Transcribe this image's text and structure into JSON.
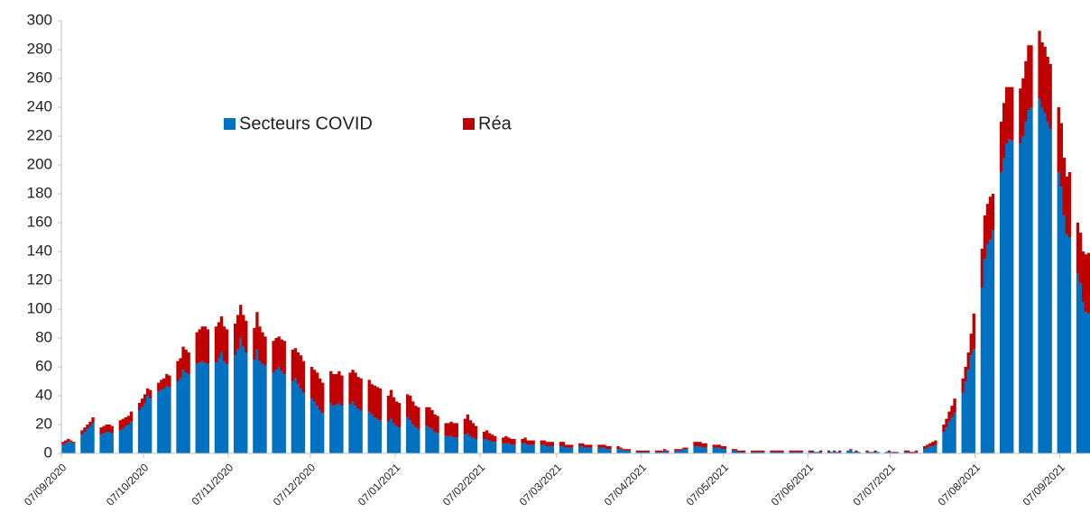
{
  "chart_data": {
    "type": "bar",
    "stacked": true,
    "categories": [
      "07/09/2020",
      null,
      null,
      null,
      null,
      null,
      null,
      null,
      null,
      null,
      null,
      null,
      null,
      null,
      null,
      null,
      null,
      null,
      null,
      null,
      null,
      null,
      null,
      null,
      null,
      null,
      null,
      null,
      null,
      null,
      "07/10/2020",
      null,
      null,
      null,
      null,
      null,
      null,
      null,
      null,
      null,
      null,
      null,
      null,
      null,
      null,
      null,
      null,
      null,
      null,
      null,
      null,
      null,
      null,
      null,
      null,
      null,
      null,
      null,
      null,
      null,
      null,
      "07/11/2020",
      null,
      null,
      null,
      null,
      null,
      null,
      null,
      null,
      null,
      null,
      null,
      null,
      null,
      null,
      null,
      null,
      null,
      null,
      null,
      null,
      null,
      null,
      null,
      null,
      null,
      null,
      null,
      null,
      null,
      "07/12/2020",
      null,
      null,
      null,
      null,
      null,
      null,
      null,
      null,
      null,
      null,
      null,
      null,
      null,
      null,
      null,
      null,
      null,
      null,
      null,
      null,
      null,
      null,
      null,
      null,
      null,
      null,
      null,
      null,
      null,
      null,
      "07/01/2021",
      null,
      null,
      null,
      null,
      null,
      null,
      null,
      null,
      null,
      null,
      null,
      null,
      null,
      null,
      null,
      null,
      null,
      null,
      null,
      null,
      null,
      null,
      null,
      null,
      null,
      null,
      null,
      null,
      null,
      null,
      "07/02/2021",
      null,
      null,
      null,
      null,
      null,
      null,
      null,
      null,
      null,
      null,
      null,
      null,
      null,
      null,
      null,
      null,
      null,
      null,
      null,
      null,
      null,
      null,
      null,
      null,
      null,
      null,
      null,
      "07/03/2021",
      null,
      null,
      null,
      null,
      null,
      null,
      null,
      null,
      null,
      null,
      null,
      null,
      null,
      null,
      null,
      null,
      null,
      null,
      null,
      null,
      null,
      null,
      null,
      null,
      null,
      null,
      null,
      null,
      null,
      null,
      "07/04/2021",
      null,
      null,
      null,
      null,
      null,
      null,
      null,
      null,
      null,
      null,
      null,
      null,
      null,
      null,
      null,
      null,
      null,
      null,
      null,
      null,
      null,
      null,
      null,
      null,
      null,
      null,
      null,
      null,
      null,
      "07/05/2021",
      null,
      null,
      null,
      null,
      null,
      null,
      null,
      null,
      null,
      null,
      null,
      null,
      null,
      null,
      null,
      null,
      null,
      null,
      null,
      null,
      null,
      null,
      null,
      null,
      null,
      null,
      null,
      null,
      null,
      null,
      "07/06/2021",
      null,
      null,
      null,
      null,
      null,
      null,
      null,
      null,
      null,
      null,
      null,
      null,
      null,
      null,
      null,
      null,
      null,
      null,
      null,
      null,
      null,
      null,
      null,
      null,
      null,
      null,
      null,
      null,
      null,
      "07/07/2021",
      null,
      null,
      null,
      null,
      null,
      null,
      null,
      null,
      null,
      null,
      null,
      null,
      null,
      null,
      null,
      null,
      null,
      null,
      null,
      null,
      null,
      null,
      null,
      null,
      null,
      null,
      null,
      null,
      null,
      null,
      "07/08/2021",
      null,
      null,
      null,
      null,
      null,
      null,
      null,
      null,
      null,
      null,
      null,
      null,
      null,
      null,
      null,
      null,
      null,
      null,
      null,
      null,
      null,
      null,
      null,
      null,
      null,
      null,
      null,
      null,
      null,
      null,
      "07/09/2021",
      null,
      null,
      null,
      null,
      null,
      null,
      null,
      null,
      null,
      null
    ],
    "series": [
      {
        "name": "Secteurs COVID",
        "color": "#0070c0",
        "values": [
          6,
          7,
          8,
          8,
          7,
          null,
          null,
          13,
          15,
          17,
          19,
          21,
          null,
          null,
          13,
          14,
          15,
          15,
          14,
          null,
          null,
          16,
          17,
          19,
          20,
          22,
          null,
          null,
          30,
          32,
          35,
          40,
          38,
          null,
          null,
          43,
          44,
          45,
          47,
          46,
          null,
          null,
          50,
          52,
          58,
          56,
          55,
          null,
          null,
          62,
          63,
          64,
          63,
          62,
          null,
          null,
          63,
          66,
          70,
          64,
          62,
          null,
          null,
          68,
          72,
          80,
          74,
          70,
          null,
          null,
          65,
          72,
          64,
          62,
          61,
          null,
          null,
          56,
          58,
          60,
          57,
          55,
          null,
          null,
          50,
          52,
          48,
          45,
          42,
          null,
          null,
          38,
          36,
          33,
          30,
          28,
          null,
          null,
          35,
          33,
          34,
          35,
          33,
          null,
          null,
          34,
          36,
          33,
          31,
          30,
          null,
          null,
          29,
          27,
          25,
          24,
          23,
          null,
          null,
          22,
          24,
          21,
          19,
          18,
          null,
          null,
          25,
          23,
          20,
          18,
          17,
          null,
          null,
          19,
          18,
          17,
          15,
          14,
          null,
          null,
          12,
          12,
          12,
          11,
          11,
          null,
          null,
          13,
          14,
          12,
          11,
          10,
          null,
          null,
          10,
          10,
          9,
          8,
          8,
          null,
          null,
          7,
          7,
          7,
          6,
          6,
          null,
          null,
          7,
          7,
          6,
          6,
          6,
          null,
          null,
          6,
          6,
          5,
          5,
          5,
          null,
          null,
          5,
          5,
          4,
          4,
          4,
          null,
          null,
          5,
          5,
          4,
          4,
          4,
          null,
          null,
          4,
          4,
          4,
          3,
          3,
          null,
          null,
          3,
          3,
          2,
          2,
          2,
          null,
          null,
          1,
          1,
          1,
          1,
          1,
          null,
          null,
          1,
          1,
          1,
          2,
          1,
          null,
          null,
          2,
          2,
          2,
          3,
          3,
          null,
          null,
          5,
          5,
          5,
          4,
          4,
          null,
          null,
          4,
          4,
          4,
          3,
          3,
          null,
          null,
          2,
          2,
          1,
          1,
          1,
          null,
          null,
          1,
          1,
          1,
          1,
          1,
          null,
          null,
          1,
          1,
          1,
          1,
          1,
          null,
          null,
          1,
          1,
          1,
          1,
          1,
          null,
          null,
          1,
          1,
          1,
          1,
          1,
          null,
          null,
          1,
          1,
          1,
          1,
          1,
          null,
          null,
          2,
          2,
          1,
          1,
          1,
          null,
          null,
          1,
          1,
          1,
          1,
          1,
          null,
          null,
          1,
          1,
          1,
          0,
          1,
          null,
          null,
          1,
          1,
          0,
          0,
          1,
          null,
          null,
          3,
          4,
          5,
          5,
          6,
          null,
          null,
          15,
          18,
          22,
          25,
          28,
          null,
          null,
          42,
          50,
          58,
          68,
          72,
          null,
          null,
          115,
          135,
          145,
          148,
          155,
          null,
          null,
          195,
          205,
          215,
          218,
          217,
          null,
          null,
          215,
          220,
          230,
          238,
          240,
          null,
          null,
          246,
          240,
          236,
          230,
          225,
          null,
          null,
          195,
          185,
          165,
          152,
          150,
          null,
          null,
          125,
          118,
          105,
          98,
          97
        ]
      },
      {
        "name": "Réa",
        "color": "#c00000",
        "values": [
          2,
          2,
          2,
          1,
          1,
          null,
          null,
          3,
          3,
          3,
          3,
          4,
          null,
          null,
          5,
          5,
          5,
          5,
          5,
          null,
          null,
          7,
          7,
          6,
          6,
          7,
          null,
          null,
          5,
          6,
          6,
          5,
          6,
          null,
          null,
          6,
          7,
          7,
          8,
          8,
          null,
          null,
          14,
          14,
          16,
          16,
          15,
          null,
          null,
          22,
          23,
          24,
          25,
          24,
          null,
          null,
          25,
          25,
          25,
          24,
          24,
          null,
          null,
          22,
          24,
          23,
          22,
          22,
          null,
          null,
          22,
          26,
          24,
          22,
          20,
          null,
          null,
          22,
          22,
          21,
          22,
          23,
          null,
          null,
          22,
          21,
          22,
          23,
          22,
          null,
          null,
          22,
          22,
          23,
          22,
          21,
          null,
          null,
          22,
          22,
          21,
          22,
          21,
          null,
          null,
          22,
          22,
          23,
          22,
          22,
          null,
          null,
          22,
          21,
          22,
          22,
          22,
          null,
          null,
          18,
          20,
          18,
          17,
          17,
          null,
          null,
          16,
          17,
          16,
          15,
          15,
          null,
          null,
          13,
          14,
          13,
          12,
          12,
          null,
          null,
          9,
          9,
          10,
          10,
          10,
          null,
          null,
          11,
          13,
          11,
          10,
          9,
          null,
          null,
          5,
          6,
          5,
          5,
          4,
          null,
          null,
          4,
          5,
          4,
          4,
          4,
          null,
          null,
          3,
          4,
          3,
          3,
          3,
          null,
          null,
          3,
          3,
          3,
          3,
          3,
          null,
          null,
          3,
          3,
          2,
          2,
          2,
          null,
          null,
          2,
          2,
          2,
          2,
          2,
          null,
          null,
          2,
          2,
          2,
          2,
          2,
          null,
          null,
          2,
          1,
          1,
          1,
          1,
          null,
          null,
          1,
          1,
          1,
          1,
          1,
          null,
          null,
          1,
          1,
          1,
          1,
          1,
          null,
          null,
          1,
          1,
          1,
          1,
          1,
          null,
          null,
          3,
          3,
          3,
          3,
          3,
          null,
          null,
          2,
          2,
          2,
          2,
          2,
          null,
          null,
          1,
          1,
          1,
          1,
          1,
          null,
          null,
          1,
          1,
          1,
          1,
          1,
          null,
          null,
          1,
          1,
          1,
          1,
          1,
          null,
          null,
          1,
          1,
          1,
          1,
          1,
          null,
          null,
          1,
          1,
          0,
          0,
          1,
          null,
          null,
          1,
          0,
          1,
          0,
          1,
          null,
          null,
          0,
          1,
          0,
          1,
          0,
          null,
          null,
          1,
          0,
          0,
          1,
          0,
          null,
          null,
          0,
          1,
          0,
          1,
          0,
          null,
          null,
          1,
          1,
          1,
          1,
          1,
          null,
          null,
          2,
          2,
          2,
          3,
          3,
          null,
          null,
          5,
          6,
          7,
          8,
          10,
          null,
          null,
          10,
          10,
          12,
          15,
          25,
          null,
          null,
          27,
          30,
          28,
          30,
          25,
          null,
          null,
          35,
          38,
          39,
          36,
          37,
          null,
          null,
          38,
          40,
          42,
          45,
          43,
          null,
          null,
          47,
          45,
          46,
          45,
          45,
          null,
          null,
          45,
          44,
          40,
          40,
          45,
          null,
          null,
          35,
          35,
          35,
          40,
          42
        ]
      }
    ],
    "ylim": [
      0,
      300
    ],
    "yticks": [
      0,
      20,
      40,
      60,
      80,
      100,
      120,
      140,
      160,
      180,
      200,
      220,
      240,
      260,
      280,
      300
    ]
  }
}
